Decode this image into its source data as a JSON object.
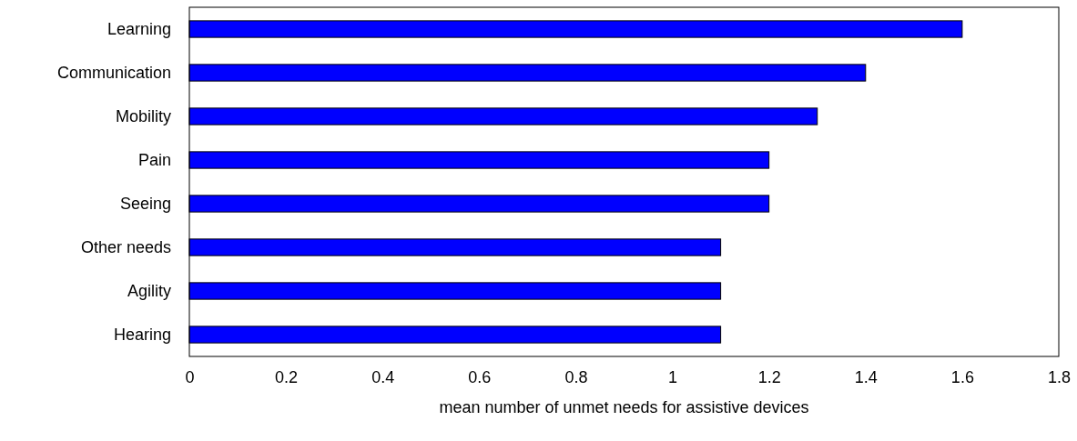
{
  "chart_data": {
    "type": "bar",
    "orientation": "horizontal",
    "xlabel": "mean number of unmet needs for assistive devices",
    "categories": [
      "Learning",
      "Communication",
      "Mobility",
      "Pain",
      "Seeing",
      "Other needs",
      "Agility",
      "Hearing"
    ],
    "values": [
      1.6,
      1.4,
      1.3,
      1.2,
      1.2,
      1.1,
      1.1,
      1.1
    ],
    "color": "#0000ff",
    "xlim": [
      0,
      1.8
    ],
    "xticks": [
      0,
      0.2,
      0.4,
      0.6,
      0.8,
      1,
      1.2,
      1.4,
      1.6,
      1.8
    ],
    "grid": false
  }
}
